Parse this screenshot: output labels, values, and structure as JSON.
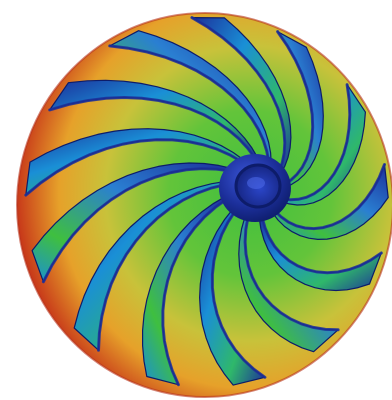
{
  "image": {
    "subject": "impeller-stress-render",
    "colors": {
      "background": "#ffffff",
      "hot": "#c83a1a",
      "warm": "#e6a12a",
      "mid": "#3fbf3f",
      "cool": "#1a8fd6",
      "cold": "#1c2f9a",
      "shadow": "#0d1c6a"
    },
    "blade_count": 13
  }
}
